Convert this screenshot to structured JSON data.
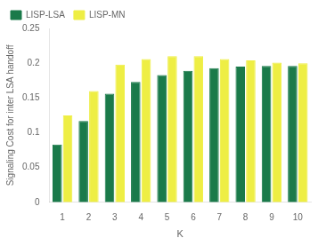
{
  "chart_data": {
    "type": "bar",
    "xlabel": "K",
    "ylabel": "Signaling Cost for inter LSA handoff",
    "categories": [
      1,
      2,
      3,
      4,
      5,
      6,
      7,
      8,
      9,
      10
    ],
    "series": [
      {
        "name": "LISP-LSA",
        "color": "#1a7a4a",
        "values": [
          0.083,
          0.117,
          0.156,
          0.173,
          0.183,
          0.189,
          0.193,
          0.195,
          0.196,
          0.196
        ]
      },
      {
        "name": "LISP-MN",
        "color": "#eeee44",
        "values": [
          0.125,
          0.16,
          0.198,
          0.206,
          0.21,
          0.21,
          0.206,
          0.204,
          0.201,
          0.2
        ]
      }
    ],
    "ylim": [
      0,
      0.25
    ],
    "yticks": [
      0,
      0.05,
      0.1,
      0.15,
      0.2,
      0.25
    ],
    "grid": false,
    "legend": "upper left"
  }
}
